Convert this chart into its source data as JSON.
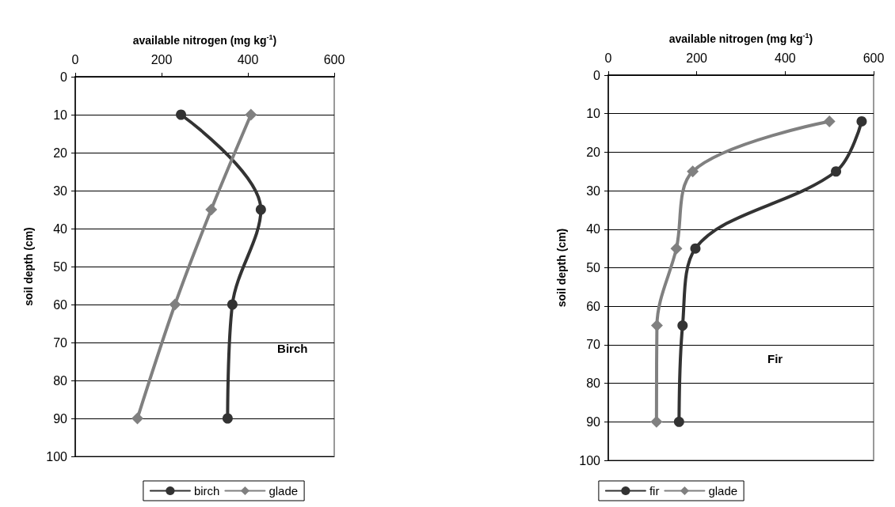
{
  "chart_data": [
    {
      "type": "line",
      "xlabel": "available nitrogen (mg kg$^{-1}$)",
      "ylabel": "soil depth (cm)",
      "annotations": [
        "Birch"
      ],
      "xlim": [
        0,
        600
      ],
      "xticks": [
        0,
        200,
        400,
        600
      ],
      "ylim": [
        100,
        0
      ],
      "yticks": [
        0,
        10,
        20,
        30,
        40,
        50,
        60,
        70,
        80,
        90,
        100
      ],
      "grid": "y",
      "legend": "bottom",
      "line_style": "solid",
      "series": [
        {
          "name": "birch",
          "color": "#333333",
          "marker": "circle",
          "x": [
            245,
            430,
            364,
            353
          ],
          "values": [
            10,
            35,
            60,
            90
          ]
        },
        {
          "name": "glade",
          "color": "#808080",
          "marker": "diamond",
          "x": [
            407,
            315,
            231,
            144
          ],
          "values": [
            10,
            35,
            60,
            90
          ]
        }
      ]
    },
    {
      "type": "line",
      "xlabel": "available nitrogen (mg kg$^{-1}$)",
      "ylabel": "soil depth (cm)",
      "annotations": [
        "Fir"
      ],
      "xlim": [
        0,
        600
      ],
      "xticks": [
        0,
        200,
        400,
        600
      ],
      "ylim": [
        100,
        0
      ],
      "yticks": [
        0,
        10,
        20,
        30,
        40,
        50,
        60,
        70,
        80,
        90,
        100
      ],
      "grid": "y",
      "legend": "bottom",
      "line_style": "solid",
      "series": [
        {
          "name": "fir",
          "color": "#333333",
          "marker": "circle",
          "x": [
            573,
            515,
            197,
            168,
            160
          ],
          "values": [
            12,
            25,
            45,
            65,
            90
          ]
        },
        {
          "name": "glade",
          "color": "#808080",
          "marker": "diamond",
          "x": [
            500,
            191,
            154,
            110,
            109
          ],
          "values": [
            12,
            25,
            45,
            65,
            90
          ]
        }
      ]
    }
  ]
}
